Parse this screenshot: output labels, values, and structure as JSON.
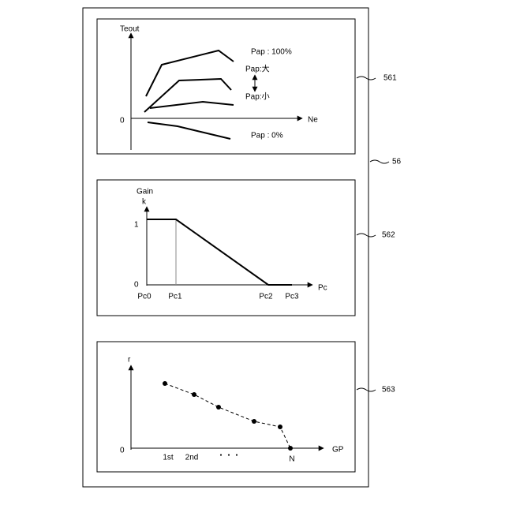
{
  "figure_label": "56",
  "panels": [
    {
      "ref": "561",
      "y_axis_label": "Teout",
      "x_axis_label": "Ne",
      "origin_label": "0",
      "curve_labels": [
        "Pap : 100%",
        "Pap:大",
        "Pap:小",
        "Pap : 0%"
      ]
    },
    {
      "ref": "562",
      "y_axis_label": "Gain",
      "y_axis_symbol": "k",
      "x_axis_label": "Pc",
      "y_ticks": [
        "1",
        "0"
      ],
      "x_ticks": [
        "Pc0",
        "Pc1",
        "Pc2",
        "Pc3"
      ]
    },
    {
      "ref": "563",
      "y_axis_label": "r",
      "x_axis_label": "GP",
      "origin_label": "0",
      "x_ticks": [
        "1st",
        "2nd",
        "・・・",
        "N"
      ]
    }
  ]
}
